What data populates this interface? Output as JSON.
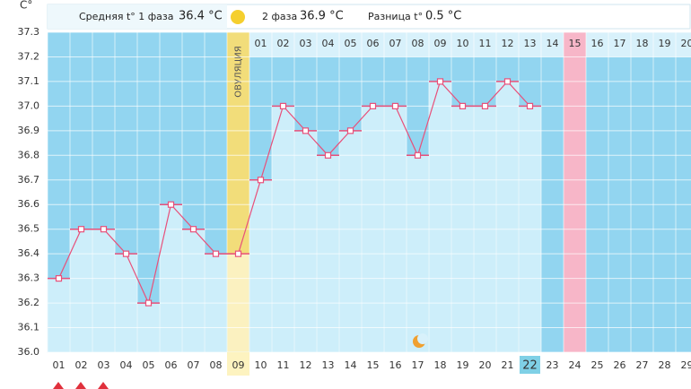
{
  "chart_data": {
    "type": "line",
    "y_unit": "C°",
    "header": {
      "phase1_label": "Средняя t° 1 фаза",
      "phase1_value": "36.4 °C",
      "phase2_label": "2 фаза",
      "phase2_value": "36.9 °C",
      "diff_label": "Разница t°",
      "diff_value": "0.5 °C"
    },
    "ovulation_label": "ОВУЛЯЦИЯ",
    "ovulation_index": 8,
    "today_index": 21,
    "highlight_index": 23,
    "categories": [
      "01",
      "02",
      "03",
      "04",
      "05",
      "06",
      "07",
      "08",
      "09",
      "10",
      "11",
      "12",
      "13",
      "14",
      "15",
      "16",
      "17",
      "18",
      "19",
      "20",
      "21",
      "22",
      "23",
      "24",
      "25",
      "26",
      "27",
      "28",
      "29"
    ],
    "phase2_labels": [
      "01",
      "02",
      "03",
      "04",
      "05",
      "06",
      "07",
      "08",
      "09",
      "10",
      "11",
      "12",
      "13",
      "14",
      "15",
      "16",
      "17",
      "18",
      "19",
      "20"
    ],
    "values": [
      36.3,
      36.5,
      36.5,
      36.4,
      36.2,
      36.6,
      36.5,
      36.4,
      36.4,
      36.7,
      37.0,
      36.9,
      36.8,
      36.9,
      37.0,
      37.0,
      36.8,
      37.1,
      37.0,
      37.0,
      37.1,
      37.0,
      null,
      null,
      null,
      null,
      null,
      null,
      null
    ],
    "ylim": [
      36.0,
      37.3
    ],
    "yticks": [
      {
        "value": 36.0,
        "label": "36.0"
      },
      36.1,
      36.2,
      36.3,
      36.4,
      36.5,
      36.6,
      36.7,
      36.8,
      36.9,
      {
        "value": 37.0,
        "label": "37.0"
      },
      37.1,
      37.2,
      37.3
    ],
    "grid": true,
    "color": "#e8507a"
  }
}
